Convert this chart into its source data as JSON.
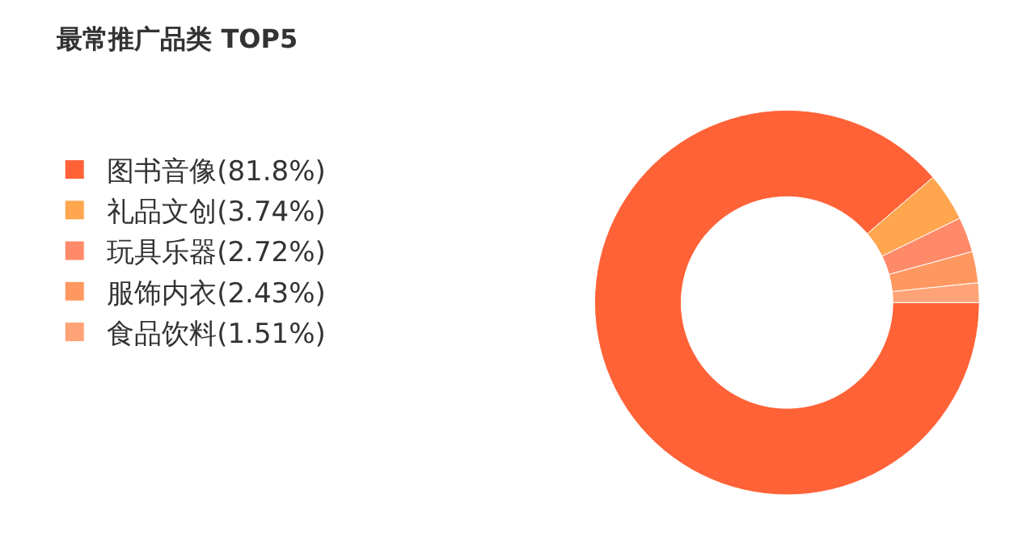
{
  "chart_data": {
    "type": "donut",
    "title": "最常推广品类 TOP5",
    "categories": [
      "图书音像(81.8%)",
      "礼品文创(3.74%)",
      "玩具乐器(2.72%)",
      "服饰内衣(2.43%)",
      "食品饮料(1.51%)"
    ],
    "values": [
      81.8,
      3.74,
      2.72,
      2.43,
      1.51
    ],
    "colors": [
      "#ff6237",
      "#ffa64f",
      "#ff8a6a",
      "#ff9860",
      "#ffa377"
    ],
    "legend": "left"
  }
}
